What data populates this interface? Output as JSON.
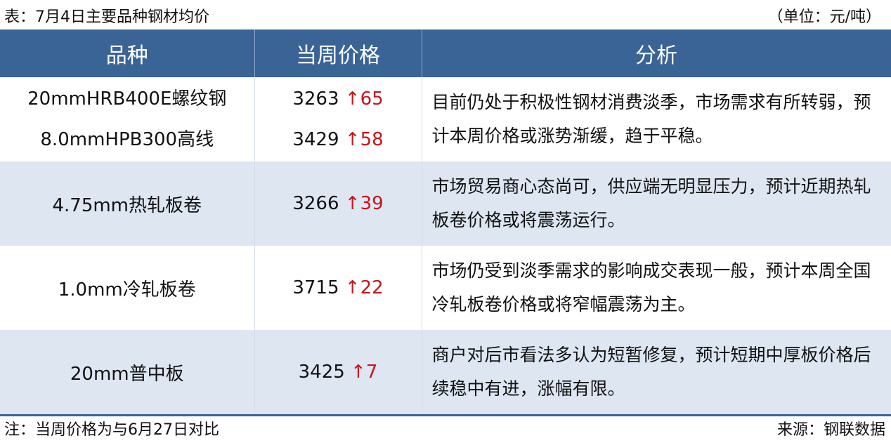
{
  "title": "表：7月4日主要品种钢材均价",
  "unit": "（单位：元/吨）",
  "headers": [
    "品种",
    "当周价格",
    "分析"
  ],
  "rows": [
    {
      "items": [
        {
          "name": "20mmHRB400E螺纹钢",
          "price": "3263",
          "arrow": "↑",
          "change": "65"
        },
        {
          "name": "8.0mmHPB300高线",
          "price": "3429",
          "arrow": "↑",
          "change": "58"
        }
      ],
      "analysis": "目前仍处于积极性钢材消费淡季，市场需求有所转弱，预计本周价格或涨势渐缓，趋于平稳。"
    },
    {
      "items": [
        {
          "name": "4.75mm热轧板卷",
          "price": "3266",
          "arrow": "↑",
          "change": "39"
        }
      ],
      "analysis": "市场贸易商心态尚可，供应端无明显压力，预计近期热轧板卷价格或将震荡运行。"
    },
    {
      "items": [
        {
          "name": "1.0mm冷轧板卷",
          "price": "3715",
          "arrow": "↑",
          "change": "22"
        }
      ],
      "analysis": "市场仍受到淡季需求的影响成交表现一般，预计本周全国冷轧板卷价格或将窄幅震荡为主。"
    },
    {
      "items": [
        {
          "name": "20mm普中板",
          "price": "3425",
          "arrow": "↑",
          "change": "7"
        }
      ],
      "analysis": "商户对后市看法多认为短暂修复，预计短期中厚板价格后续稳中有进，涨幅有限。"
    }
  ],
  "note": "注：当周价格为与6月27日对比",
  "source": "来源：钢联数据",
  "colors": {
    "header": "#3a6496",
    "alt_row": "#dde6f1",
    "up": "#c8151b"
  }
}
